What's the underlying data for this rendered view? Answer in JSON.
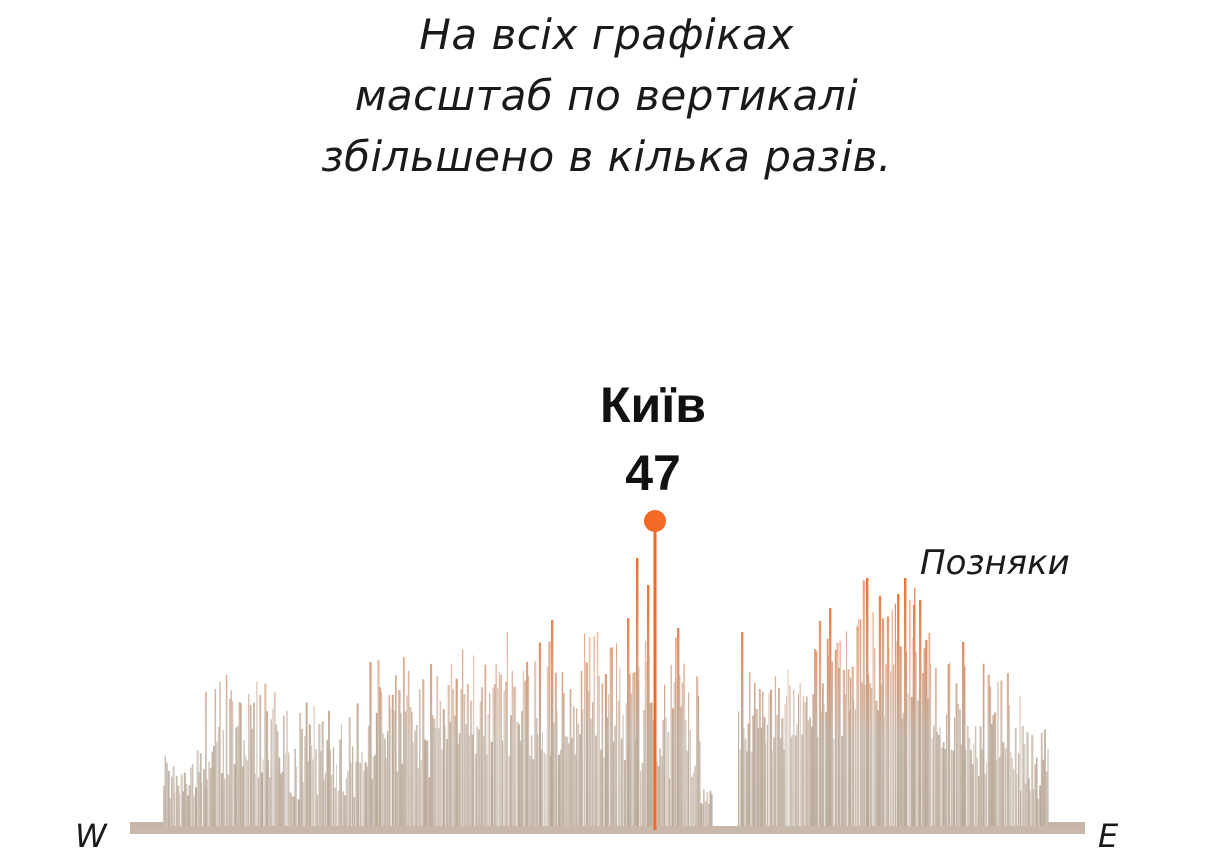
{
  "note": {
    "lines": [
      "На всіх графіках",
      "масштаб по вертикалі",
      "збільшено в кілька разів."
    ]
  },
  "chart_data": {
    "type": "bar",
    "title": "",
    "xlabel": "",
    "ylabel": "",
    "axis_labels": {
      "left": "W",
      "right": "E"
    },
    "peak": {
      "name": "Київ",
      "value": 47
    },
    "annotations": [
      {
        "text": "Позняки"
      }
    ],
    "ylim": [
      0,
      47
    ],
    "colors": {
      "base": "#bcab9c",
      "high": "#f26a24",
      "peak": "#f26a24"
    }
  }
}
